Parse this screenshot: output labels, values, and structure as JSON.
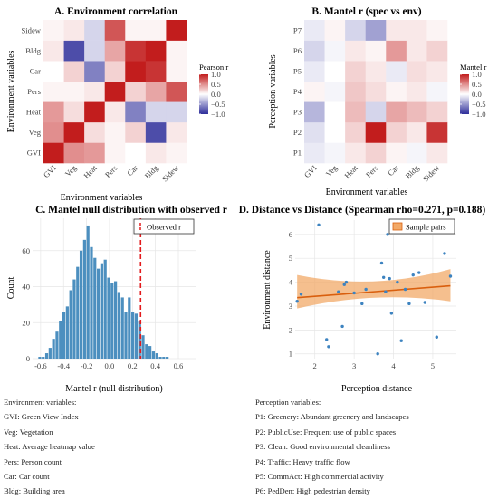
{
  "heatmap_colors": {
    "low": "#2d2d9a",
    "mid": "#ffffff",
    "high": "#c21d1d"
  },
  "tick_format": [
    "1.0",
    "0.5",
    "0.0",
    "−0.5",
    "−1.0"
  ],
  "accent": {
    "hist_bar": "#4c8fbf",
    "observed_line": "#e31a1c",
    "fit_line": "#d95f0e",
    "band": "#f2a968",
    "points": "#3d83c0"
  },
  "chart_data": [
    {
      "type": "heatmap",
      "title": "A. Environment correlation",
      "xlabel": "Environment variables",
      "ylabel": "Environment variables",
      "x": [
        "GVI",
        "Veg",
        "Heat",
        "Pers",
        "Car",
        "Bldg",
        "Sidew"
      ],
      "y": [
        "GVI",
        "Veg",
        "Heat",
        "Pers",
        "Car",
        "Bldg",
        "Sidew"
      ],
      "legend_title": "Pearson r",
      "legend_ticks": [
        1.0,
        0.5,
        0.0,
        -0.5,
        -1.0
      ],
      "range": [
        -1,
        1
      ],
      "values": [
        [
          1.0,
          0.5,
          0.45,
          0.05,
          0.0,
          0.1,
          0.05
        ],
        [
          0.5,
          1.0,
          0.15,
          0.05,
          0.2,
          -0.85,
          0.1
        ],
        [
          0.45,
          0.15,
          1.0,
          0.1,
          -0.6,
          -0.2,
          -0.2
        ],
        [
          0.05,
          0.05,
          0.1,
          1.0,
          0.2,
          0.4,
          0.75
        ],
        [
          0.0,
          0.2,
          -0.6,
          0.2,
          1.0,
          0.9,
          0.05
        ],
        [
          0.1,
          -0.85,
          -0.2,
          0.4,
          0.9,
          1.0,
          0.05
        ],
        [
          0.05,
          0.1,
          -0.2,
          0.75,
          0.05,
          0.05,
          1.0
        ]
      ]
    },
    {
      "type": "heatmap",
      "title": "B. Mantel r (spec vs env)",
      "xlabel": "Environment variables",
      "ylabel": "Perception variables",
      "x": [
        "GVI",
        "Veg",
        "Heat",
        "Pers",
        "Car",
        "Bldg",
        "Sidew"
      ],
      "y": [
        "P1",
        "P2",
        "P3",
        "P4",
        "P5",
        "P6",
        "P7"
      ],
      "legend_title": "Mantel r",
      "legend_ticks": [
        1.0,
        0.5,
        0.0,
        -0.5,
        -1.0
      ],
      "range": [
        -1,
        1
      ],
      "values": [
        [
          -0.1,
          -0.05,
          0.1,
          0.2,
          0.05,
          -0.05,
          0.1
        ],
        [
          -0.15,
          0.0,
          0.2,
          1.0,
          0.2,
          0.1,
          0.9
        ],
        [
          -0.35,
          0.0,
          0.3,
          -0.2,
          0.4,
          0.3,
          0.2
        ],
        [
          0.05,
          -0.05,
          0.25,
          0.15,
          0.05,
          0.1,
          -0.05
        ],
        [
          -0.1,
          0.0,
          0.2,
          0.1,
          -0.1,
          0.15,
          0.1
        ],
        [
          -0.2,
          -0.05,
          0.1,
          0.05,
          0.45,
          0.1,
          0.2
        ],
        [
          -0.1,
          0.05,
          -0.2,
          -0.45,
          0.1,
          0.1,
          0.05
        ]
      ]
    },
    {
      "type": "bar",
      "title": "C. Mantel null distribution with observed r",
      "xlabel": "Mantel r (null distribution)",
      "ylabel": "Count",
      "legend": "Observed r",
      "observed_r": 0.271,
      "xlim": [
        -0.67,
        0.75
      ],
      "ylim": [
        0,
        78
      ],
      "xticks": [
        -0.6,
        -0.4,
        -0.2,
        0.0,
        0.2,
        0.4,
        0.6
      ],
      "yticks": [
        0,
        20,
        40,
        60
      ],
      "bin_start": -0.62,
      "bin_width": 0.03,
      "values": [
        1,
        1,
        3,
        6,
        11,
        15,
        21,
        26,
        29,
        38,
        44,
        51,
        60,
        66,
        74,
        62,
        56,
        50,
        53,
        55,
        45,
        42,
        43,
        37,
        34,
        26,
        34,
        26,
        25,
        21,
        13,
        8,
        7,
        4,
        3,
        1,
        1,
        1
      ]
    },
    {
      "type": "scatter",
      "title": "D. Distance vs Distance (Spearman rho=0.271, p=0.188)",
      "xlabel": "Perception distance",
      "ylabel": "Environment distance",
      "legend": "Sample pairs",
      "xlim": [
        1.5,
        5.6
      ],
      "ylim": [
        0.8,
        6.6
      ],
      "xticks": [
        2,
        3,
        4,
        5
      ],
      "yticks": [
        1,
        2,
        3,
        4,
        5,
        6
      ],
      "points": [
        [
          1.55,
          3.2
        ],
        [
          1.65,
          3.5
        ],
        [
          2.1,
          6.4
        ],
        [
          2.3,
          1.6
        ],
        [
          2.35,
          1.3
        ],
        [
          2.6,
          3.6
        ],
        [
          2.7,
          2.15
        ],
        [
          2.75,
          3.9
        ],
        [
          2.8,
          4.0
        ],
        [
          3.0,
          3.55
        ],
        [
          3.2,
          3.1
        ],
        [
          3.3,
          3.7
        ],
        [
          3.6,
          1.0
        ],
        [
          3.7,
          4.8
        ],
        [
          3.75,
          4.2
        ],
        [
          3.8,
          3.6
        ],
        [
          3.85,
          6.0
        ],
        [
          3.9,
          4.15
        ],
        [
          3.95,
          2.7
        ],
        [
          4.1,
          4.0
        ],
        [
          4.2,
          1.55
        ],
        [
          4.3,
          3.7
        ],
        [
          4.4,
          3.1
        ],
        [
          4.5,
          4.3
        ],
        [
          4.65,
          4.4
        ],
        [
          4.8,
          3.15
        ],
        [
          5.1,
          1.7
        ],
        [
          5.3,
          5.2
        ],
        [
          5.45,
          4.25
        ]
      ],
      "fit": {
        "x0": 1.55,
        "y0": 3.35,
        "x1": 5.45,
        "y1": 3.85
      },
      "band": {
        "lower0": 2.9,
        "upper0": 4.3,
        "lowerMid": 3.45,
        "upperMid": 3.85,
        "lower1": 3.2,
        "upper1": 4.55
      }
    }
  ],
  "notes_left": {
    "title": "Environment variables:",
    "items": [
      "GVI: Green View Index",
      "Veg: Vegetation",
      "Heat: Average heatmap value",
      "Pers: Person count",
      "Car: Car count",
      "Bldg: Building area"
    ]
  },
  "notes_right": {
    "title": "Perception variables:",
    "items": [
      "P1: Greenery: Abundant greenery and landscapes",
      "P2: PublicUse: Frequent use of public spaces",
      "P3: Clean: Good environmental cleanliness",
      "P4: Traffic: Heavy traffic flow",
      "P5: CommAct: High commercial activity",
      "P6: PedDen: High pedestrian density"
    ]
  }
}
